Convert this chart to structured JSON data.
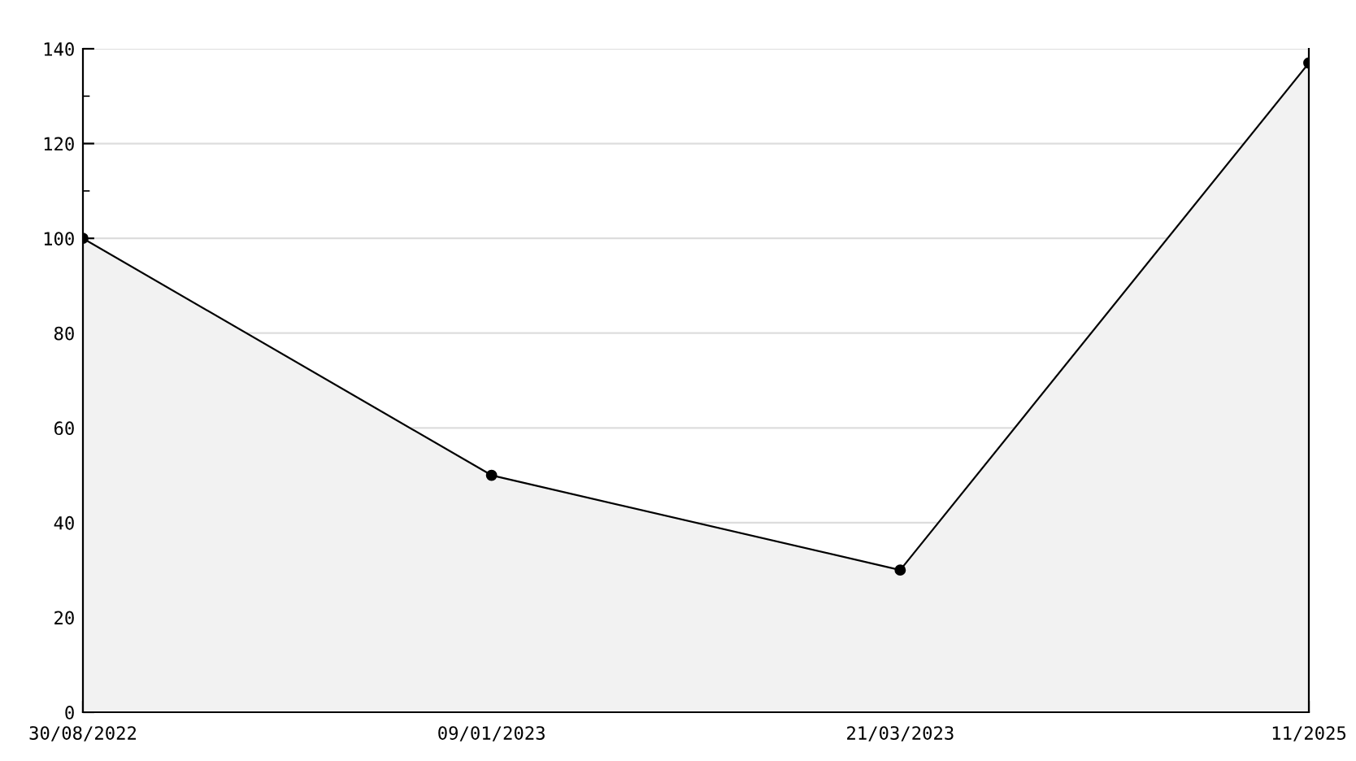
{
  "chart_data": {
    "type": "area",
    "categories": [
      "30/08/2022",
      "09/01/2023",
      "21/03/2023",
      "11/2025"
    ],
    "series": [
      {
        "color": "#000000",
        "values": [
          100,
          50,
          30,
          137
        ]
      }
    ],
    "ylim": [
      0,
      140
    ],
    "yticks": [
      0,
      20,
      40,
      60,
      80,
      100,
      120,
      140
    ],
    "grid": "y",
    "marker": "circle",
    "line_style": "solid"
  }
}
